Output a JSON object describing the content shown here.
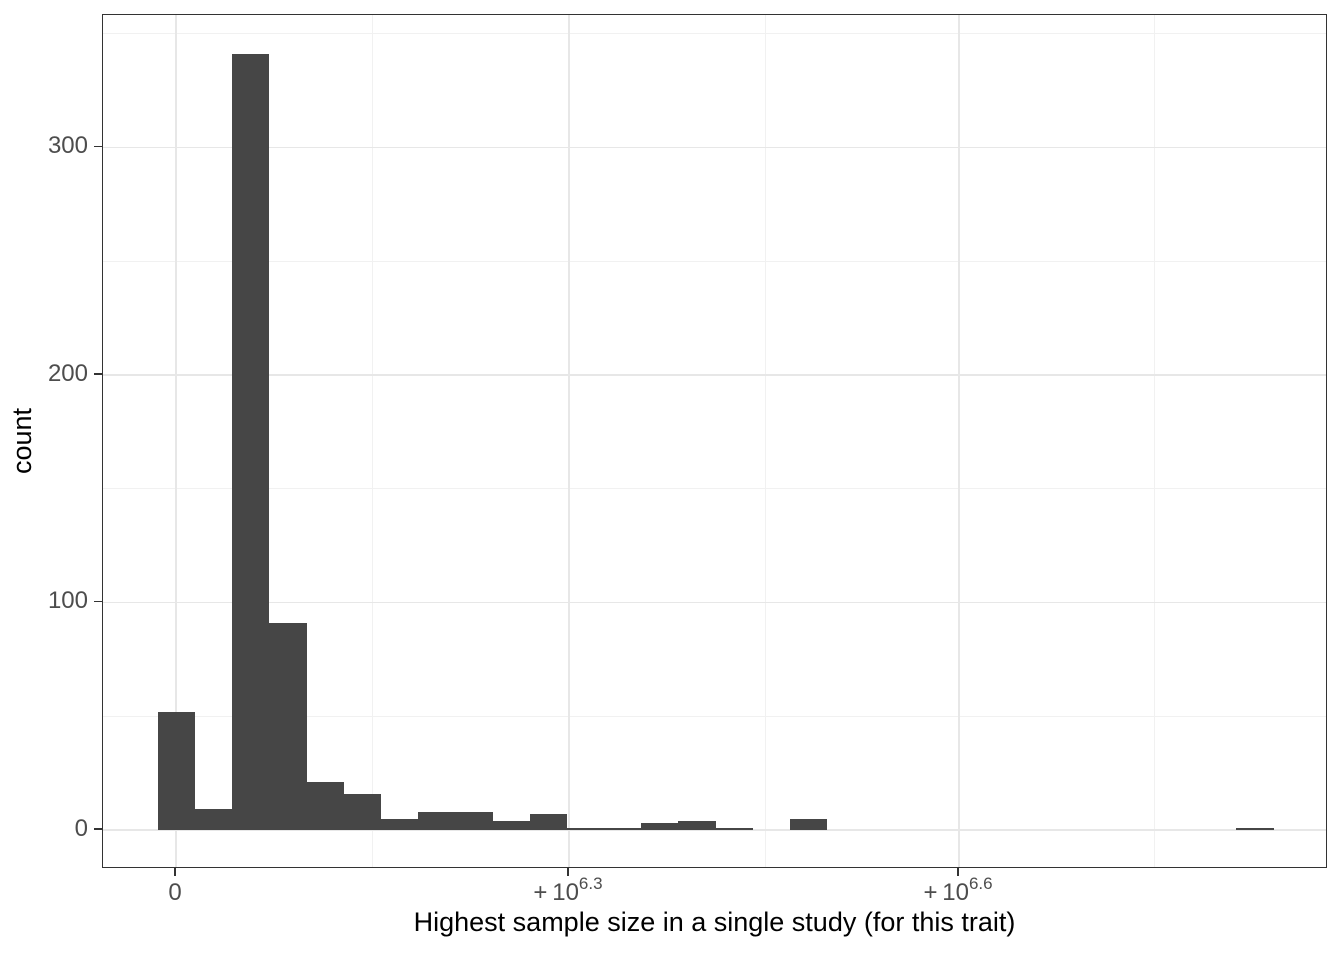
{
  "chart_data": {
    "type": "histogram",
    "title": "",
    "xlabel": "Highest sample size in a single study (for this trait)",
    "ylabel": "count",
    "x_scale_note": "pseudo-log (signed log) x axis",
    "x_axis": {
      "ticks": [
        {
          "base": "0",
          "sup": "",
          "frac": 0.0596
        },
        {
          "base": "+ 10",
          "sup": "6.3",
          "frac": 0.3804
        },
        {
          "base": "+ 10",
          "sup": "6.6",
          "frac": 0.6988
        }
      ],
      "minor_fracs": [
        0.22,
        0.5408,
        0.858
      ]
    },
    "y_axis": {
      "ticks": [
        {
          "label": "0",
          "value": 0
        },
        {
          "label": "100",
          "value": 100
        },
        {
          "label": "200",
          "value": 200
        },
        {
          "label": "300",
          "value": 300
        }
      ],
      "minor_values": [
        50,
        150,
        250,
        350
      ],
      "zero_frac": 0.9543,
      "count_frac": 0.0026646,
      "ylim_displayed": [
        0,
        358
      ]
    },
    "bins": {
      "start_frac": 0.0445,
      "width_frac": 0.03037,
      "counts": [
        52,
        9,
        341,
        91,
        21,
        16,
        5,
        8,
        8,
        4,
        7,
        1,
        1,
        3,
        4,
        1,
        0,
        5,
        0,
        0,
        0,
        0,
        0,
        0,
        0,
        0,
        0,
        0,
        0,
        1
      ]
    },
    "legend": "none",
    "grid": "major and minor, light grey on white"
  },
  "colors": {
    "bar": "#464646",
    "panel_border": "#333333",
    "grid_major": "#E7E7E7",
    "grid_minor": "#F1F1F1",
    "tick_mark": "#333333",
    "tick_label": "#4D4D4D",
    "axis_title": "#000000"
  }
}
